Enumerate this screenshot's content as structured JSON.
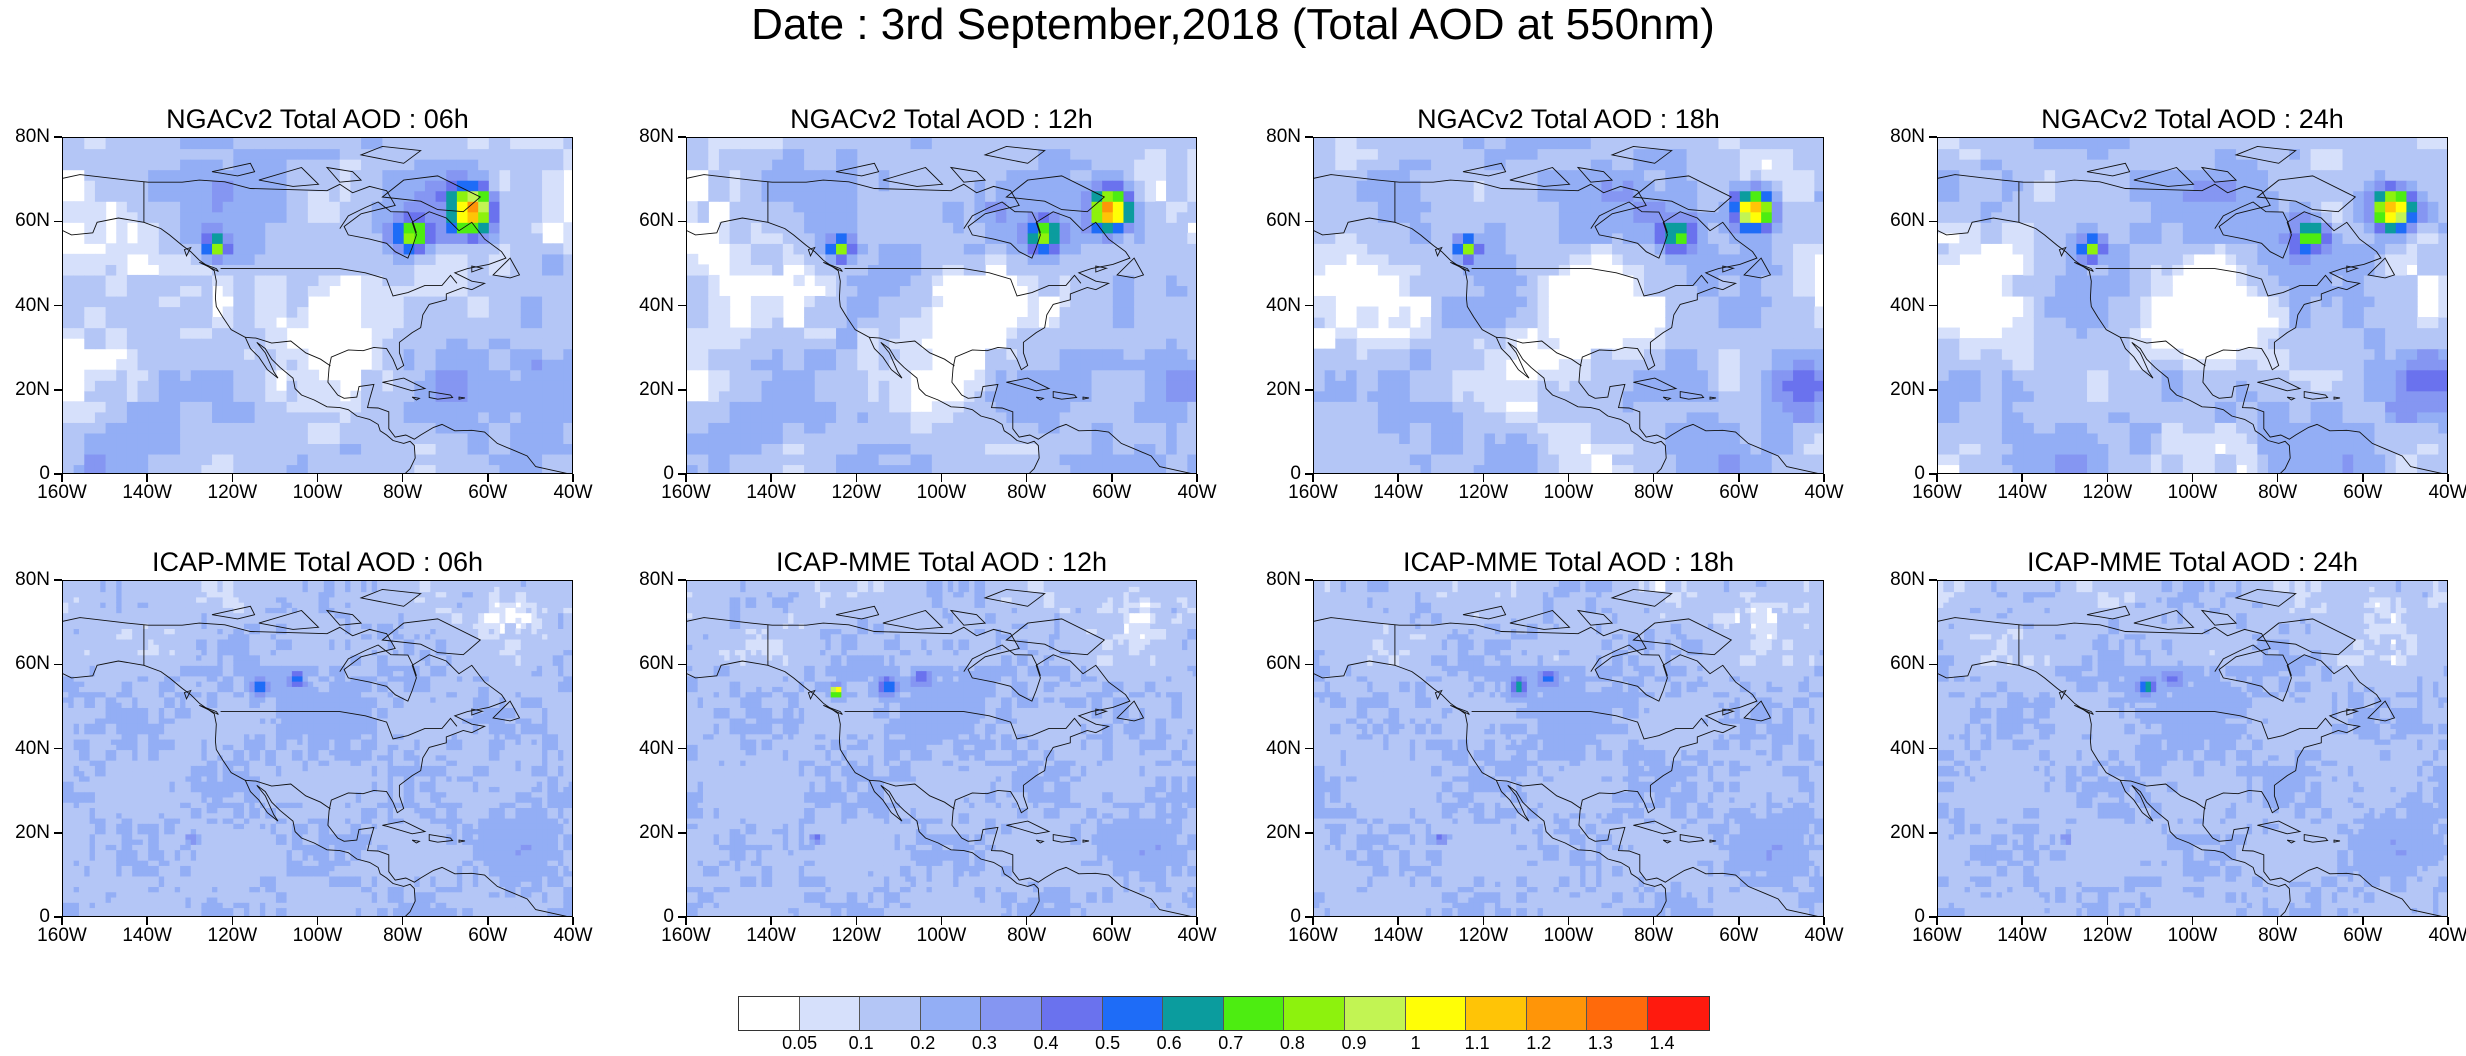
{
  "title": "Date : 3rd September,2018 (Total AOD at 550nm)",
  "y_ticks": [
    "80N",
    "60N",
    "40N",
    "20N",
    "0"
  ],
  "x_ticks": [
    "160W",
    "140W",
    "120W",
    "100W",
    "80W",
    "60W",
    "40W"
  ],
  "panels": [
    {
      "title": "NGACv2 Total AOD : 06h",
      "model": "NGACv2",
      "forecast_hour": "06h"
    },
    {
      "title": "NGACv2 Total AOD : 12h",
      "model": "NGACv2",
      "forecast_hour": "12h"
    },
    {
      "title": "NGACv2 Total AOD : 18h",
      "model": "NGACv2",
      "forecast_hour": "18h"
    },
    {
      "title": "NGACv2 Total AOD : 24h",
      "model": "NGACv2",
      "forecast_hour": "24h"
    },
    {
      "title": "ICAP-MME Total AOD : 06h",
      "model": "ICAP-MME",
      "forecast_hour": "06h"
    },
    {
      "title": "ICAP-MME Total AOD : 12h",
      "model": "ICAP-MME",
      "forecast_hour": "12h"
    },
    {
      "title": "ICAP-MME Total AOD : 18h",
      "model": "ICAP-MME",
      "forecast_hour": "18h"
    },
    {
      "title": "ICAP-MME Total AOD : 24h",
      "model": "ICAP-MME",
      "forecast_hour": "24h"
    }
  ],
  "map_extent": {
    "lon_min": -160,
    "lon_max": -40,
    "lat_min": 0,
    "lat_max": 80
  },
  "colorbar": {
    "labels": [
      "0.05",
      "0.1",
      "0.2",
      "0.3",
      "0.4",
      "0.5",
      "0.6",
      "0.7",
      "0.8",
      "0.9",
      "1",
      "1.1",
      "1.2",
      "1.3",
      "1.4"
    ],
    "colors": [
      "#ffffff",
      "#d6e0fb",
      "#b4c6f6",
      "#93aef5",
      "#8596f2",
      "#6a72ee",
      "#1e6cf7",
      "#0b9c9e",
      "#4ded11",
      "#8df20d",
      "#c2f453",
      "#fffe06",
      "#ffc406",
      "#ff9508",
      "#ff6a0b",
      "#ff1a0e"
    ]
  }
}
